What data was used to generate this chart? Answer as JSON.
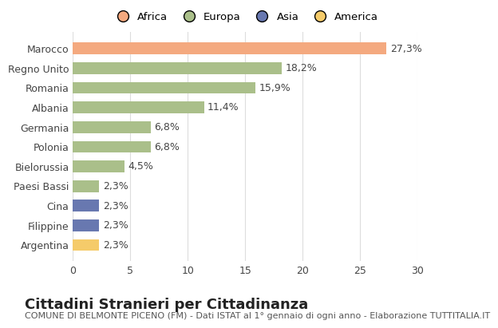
{
  "categories": [
    "Marocco",
    "Regno Unito",
    "Romania",
    "Albania",
    "Germania",
    "Polonia",
    "Bielorussia",
    "Paesi Bassi",
    "Cina",
    "Filippine",
    "Argentina"
  ],
  "values": [
    27.3,
    18.2,
    15.9,
    11.4,
    6.8,
    6.8,
    4.5,
    2.3,
    2.3,
    2.3,
    2.3
  ],
  "labels": [
    "27,3%",
    "18,2%",
    "15,9%",
    "11,4%",
    "6,8%",
    "6,8%",
    "4,5%",
    "2,3%",
    "2,3%",
    "2,3%",
    "2,3%"
  ],
  "bar_colors": [
    "#F4A97F",
    "#AABF8A",
    "#AABF8A",
    "#AABF8A",
    "#AABF8A",
    "#AABF8A",
    "#AABF8A",
    "#AABF8A",
    "#6878B0",
    "#6878B0",
    "#F5CB6A"
  ],
  "continent_colors": {
    "Africa": "#F4A97F",
    "Europa": "#AABF8A",
    "Asia": "#6878B0",
    "America": "#F5CB6A"
  },
  "legend_labels": [
    "Africa",
    "Europa",
    "Asia",
    "America"
  ],
  "xlim": [
    0,
    30
  ],
  "xticks": [
    0,
    5,
    10,
    15,
    20,
    25,
    30
  ],
  "title": "Cittadini Stranieri per Cittadinanza",
  "subtitle": "COMUNE DI BELMONTE PICENO (FM) - Dati ISTAT al 1° gennaio di ogni anno - Elaborazione TUTTITALIA.IT",
  "background_color": "#ffffff",
  "grid_color": "#dddddd",
  "bar_height": 0.6,
  "title_fontsize": 13,
  "subtitle_fontsize": 8,
  "label_fontsize": 9,
  "tick_fontsize": 9
}
